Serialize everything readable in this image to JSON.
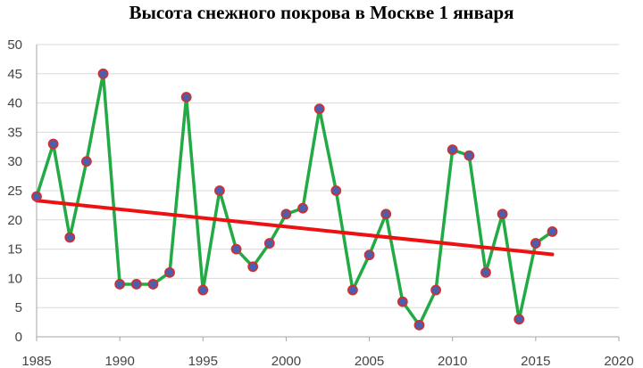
{
  "chart_data": {
    "type": "line",
    "title": "Высота снежного покрова в Москве 1 января",
    "xlabel": "",
    "ylabel": "",
    "xlim": [
      1985,
      2020
    ],
    "ylim": [
      0,
      50
    ],
    "x_ticks": [
      1985,
      1990,
      1995,
      2000,
      2005,
      2010,
      2015,
      2020
    ],
    "y_ticks": [
      0,
      5,
      10,
      15,
      20,
      25,
      30,
      35,
      40,
      45,
      50
    ],
    "grid": "horizontal",
    "legend": "none",
    "series": [
      {
        "x": [
          1985,
          1986,
          1987,
          1988,
          1989,
          1990,
          1991,
          1992,
          1993,
          1994,
          1995,
          1996,
          1997,
          1998,
          1999,
          2000,
          2001,
          2002,
          2003,
          2004,
          2005,
          2006,
          2007,
          2008,
          2009,
          2010,
          2011,
          2012,
          2013,
          2014,
          2015,
          2016
        ],
        "values": [
          24,
          33,
          17,
          30,
          45,
          9,
          9,
          9,
          11,
          41,
          8,
          25,
          15,
          12,
          16,
          21,
          22,
          39,
          25,
          8,
          14,
          21,
          6,
          2,
          8,
          32,
          31,
          11,
          21,
          3,
          16,
          18
        ],
        "line_color": "#22aa44",
        "marker_fill": "#4a5fb0",
        "marker_edge": "#d03030"
      },
      {
        "type": "trend",
        "x": [
          1985,
          2016
        ],
        "values": [
          23.3,
          14.1
        ],
        "line_color": "#ee1111"
      }
    ]
  }
}
